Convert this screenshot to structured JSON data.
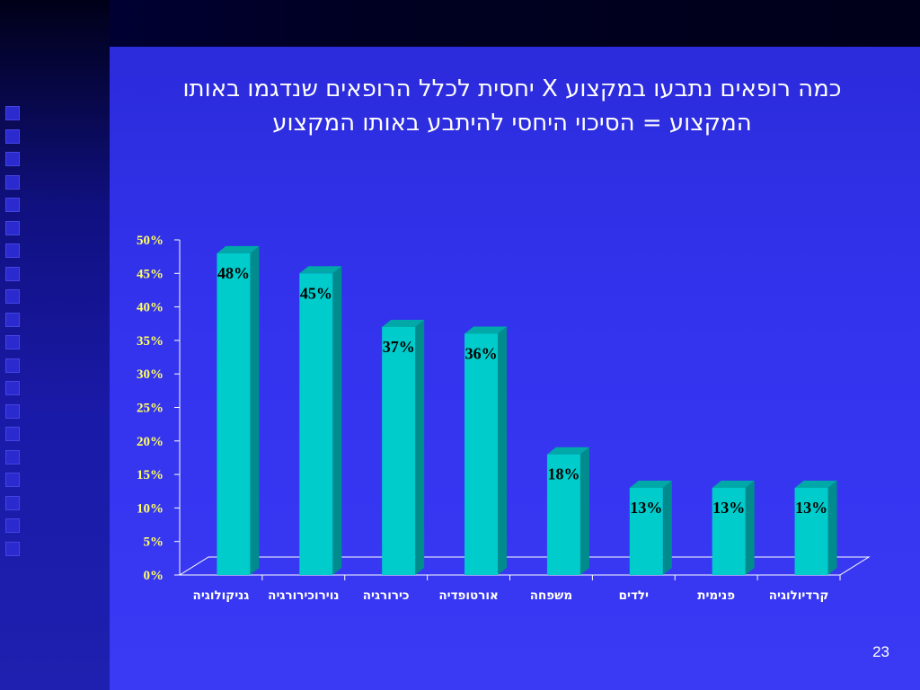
{
  "slide": {
    "title_line1": "כמה רופאים נתבעו במקצוע X יחסית לכלל הרופאים שנדגמו באותו",
    "title_line2": "המקצוע = הסיכוי היחסי להיתבע באותו המקצוע",
    "slide_number": "23"
  },
  "colors": {
    "bar_front": "#00cccc",
    "bar_side": "#008c8c",
    "bar_top": "#00a8a8",
    "axis": "#ffffff",
    "tick_label": "#ffff66"
  },
  "chart_data": {
    "type": "bar",
    "categories": [
      "גניקולוגיה",
      "נוירוכירורגיה",
      "כירורגיה",
      "אורטופדיה",
      "משפחה",
      "ילדים",
      "פנימית",
      "קרדיולוגיה"
    ],
    "values": [
      48,
      45,
      37,
      36,
      18,
      13,
      13,
      13
    ],
    "data_labels": [
      "48%",
      "45%",
      "37%",
      "36%",
      "18%",
      "13%",
      "13%",
      "13%"
    ],
    "y_ticks": [
      "0%",
      "5%",
      "10%",
      "15%",
      "20%",
      "25%",
      "30%",
      "35%",
      "40%",
      "45%",
      "50%"
    ],
    "ylim": [
      0,
      50
    ],
    "grid": false,
    "legend": "none",
    "style": "3d-columns"
  }
}
